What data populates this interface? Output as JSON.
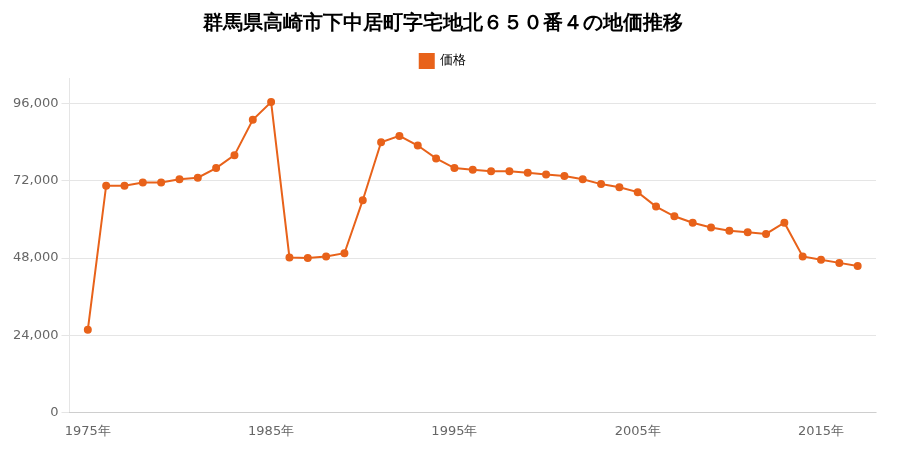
{
  "chart_data": {
    "type": "line",
    "title": "群馬県高崎市下中居町字宅地北６５０番４の地価推移",
    "x": [
      1975,
      1976,
      1977,
      1978,
      1979,
      1980,
      1981,
      1982,
      1983,
      1984,
      1985,
      1986,
      1987,
      1988,
      1989,
      1990,
      1991,
      1992,
      1993,
      1994,
      1995,
      1996,
      1997,
      1998,
      1999,
      2000,
      2001,
      2002,
      2003,
      2004,
      2005,
      2006,
      2007,
      2008,
      2009,
      2010,
      2011,
      2012,
      2013,
      2014,
      2015,
      2016,
      2017
    ],
    "series": [
      {
        "name": "価格",
        "color": "#E8621A",
        "marker": "circle",
        "values": [
          25700,
          70500,
          70500,
          71500,
          71500,
          72500,
          73000,
          76000,
          80000,
          91000,
          96500,
          48200,
          48000,
          48500,
          49500,
          66000,
          84000,
          86000,
          83000,
          79000,
          76000,
          75500,
          75000,
          75000,
          74500,
          74000,
          73500,
          72500,
          71000,
          70000,
          68500,
          64000,
          61000,
          59000,
          57500,
          56500,
          56000,
          55500,
          59000,
          48500,
          47500,
          46500,
          45500
        ]
      }
    ],
    "xlim": [
      1974,
      2018
    ],
    "xticks": [
      {
        "value": 1975,
        "label": "1975年"
      },
      {
        "value": 1985,
        "label": "1985年"
      },
      {
        "value": 1995,
        "label": "1995年"
      },
      {
        "value": 2005,
        "label": "2005年"
      },
      {
        "value": 2015,
        "label": "2015年"
      }
    ],
    "ylim": [
      0,
      104000
    ],
    "yticks": [
      0,
      {
        "value": 24000,
        "label": "24,000"
      },
      {
        "value": 48000,
        "label": "48,000"
      },
      {
        "value": 72000,
        "label": "72,000"
      },
      {
        "value": 96000,
        "label": "96,000"
      }
    ],
    "grid": "y",
    "legend": "top"
  }
}
